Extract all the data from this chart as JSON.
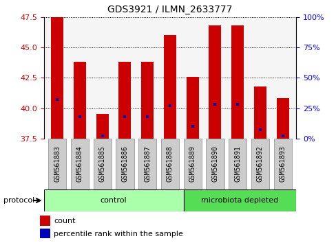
{
  "title": "GDS3921 / ILMN_2633777",
  "samples": [
    "GSM561883",
    "GSM561884",
    "GSM561885",
    "GSM561886",
    "GSM561887",
    "GSM561888",
    "GSM561889",
    "GSM561890",
    "GSM561891",
    "GSM561892",
    "GSM561893"
  ],
  "count_values": [
    47.5,
    43.8,
    39.5,
    43.8,
    43.8,
    46.0,
    42.6,
    46.8,
    46.8,
    41.8,
    40.8
  ],
  "percentile_values": [
    40.7,
    39.3,
    37.7,
    39.3,
    39.3,
    40.2,
    38.5,
    40.3,
    40.3,
    38.2,
    37.7
  ],
  "ymin": 37.5,
  "ymax": 47.5,
  "yticks_left": [
    37.5,
    40.0,
    42.5,
    45.0,
    47.5
  ],
  "yticks_right": [
    0,
    25,
    50,
    75,
    100
  ],
  "bar_color": "#cc0000",
  "percentile_color": "#0000bb",
  "bar_width": 0.55,
  "n_control": 6,
  "control_color": "#aaffaa",
  "microbiota_color": "#55dd55",
  "protocol_label": "protocol",
  "control_label": "control",
  "microbiota_label": "microbiota depleted",
  "legend_count": "count",
  "legend_percentile": "percentile rank within the sample",
  "plot_bg": "#f5f5f5",
  "label_bg": "#cccccc"
}
